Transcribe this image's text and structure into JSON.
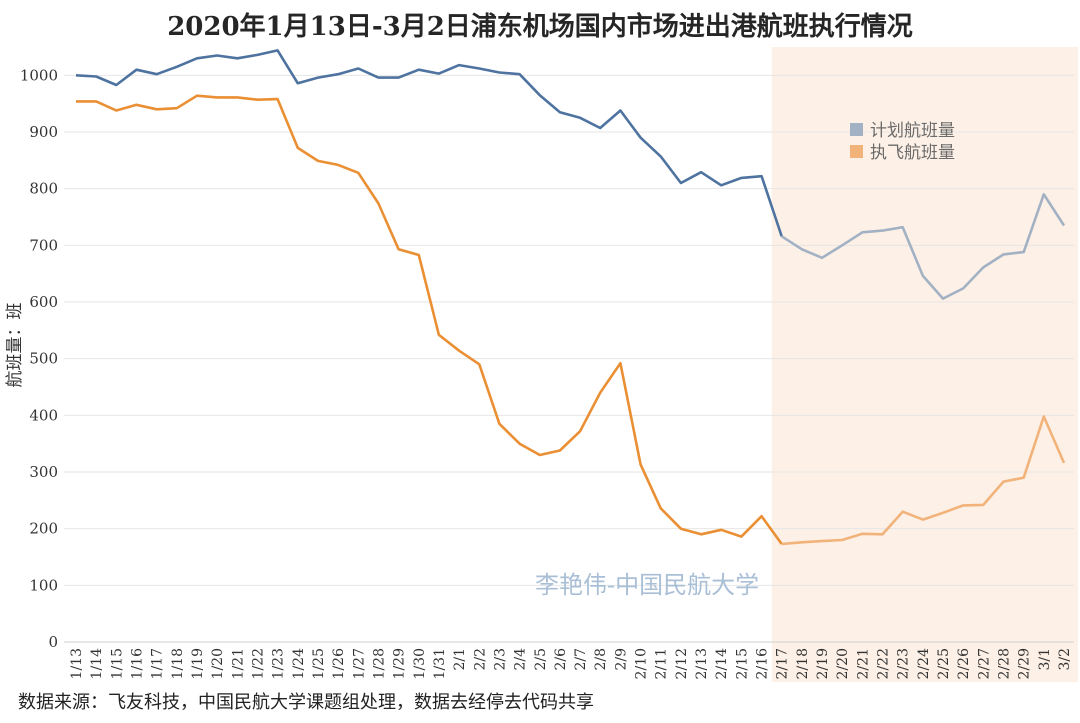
{
  "title": "2020年1月13日-3月2日浦东机场国内市场进出港航班执行情况",
  "footer": "数据来源：飞友科技，中国民航大学课题组处理，数据去经停去代码共享",
  "watermark": "李艳伟-中国民航大学",
  "colors": {
    "planned": "#4e73a0",
    "planned_shaded": "#a3b1c4",
    "actual": "#ea8f33",
    "actual_shaded": "#f2b37b",
    "shade": "#fdf0e6",
    "grid": "#e6e6e6"
  },
  "chart_data": {
    "type": "line",
    "title": "2020年1月13日-3月2日浦东机场国内市场进出港航班执行情况",
    "xlabel": "",
    "ylabel": "航班量：班",
    "ylim": [
      0,
      1050
    ],
    "yticks": [
      0,
      100,
      200,
      300,
      400,
      500,
      600,
      700,
      800,
      900,
      1000
    ],
    "grid": true,
    "legend_position": "top-right",
    "shaded_from": "2/17",
    "categories": [
      "1/13",
      "1/14",
      "1/15",
      "1/16",
      "1/17",
      "1/18",
      "1/19",
      "1/20",
      "1/21",
      "1/22",
      "1/23",
      "1/24",
      "1/25",
      "1/26",
      "1/27",
      "1/28",
      "1/29",
      "1/30",
      "1/31",
      "2/1",
      "2/2",
      "2/3",
      "2/4",
      "2/5",
      "2/6",
      "2/7",
      "2/8",
      "2/9",
      "2/10",
      "2/11",
      "2/12",
      "2/13",
      "2/14",
      "2/15",
      "2/16",
      "2/17",
      "2/18",
      "2/19",
      "2/20",
      "2/21",
      "2/22",
      "2/23",
      "2/24",
      "2/25",
      "2/26",
      "2/27",
      "2/28",
      "2/29",
      "3/1",
      "3/2"
    ],
    "series": [
      {
        "name": "计划航班量",
        "values": [
          1000,
          998,
          983,
          1010,
          1002,
          1015,
          1030,
          1035,
          1030,
          1036,
          1044,
          986,
          996,
          1002,
          1012,
          996,
          996,
          1010,
          1003,
          1018,
          1012,
          1005,
          1002,
          965,
          935,
          925,
          907,
          938,
          890,
          857,
          810,
          829,
          806,
          819,
          822,
          716,
          693,
          678,
          700,
          723,
          726,
          732,
          646,
          606,
          624,
          661,
          684,
          688,
          790,
          735
        ]
      },
      {
        "name": "执飞航班量",
        "values": [
          954,
          954,
          938,
          948,
          940,
          942,
          964,
          961,
          961,
          957,
          958,
          872,
          849,
          842,
          828,
          774,
          693,
          683,
          542,
          514,
          490,
          385,
          350,
          330,
          338,
          372,
          440,
          492,
          313,
          236,
          200,
          190,
          198,
          186,
          222,
          173,
          176,
          178,
          180,
          191,
          190,
          230,
          216,
          228,
          241,
          242,
          283,
          290,
          398,
          316
        ]
      }
    ]
  }
}
